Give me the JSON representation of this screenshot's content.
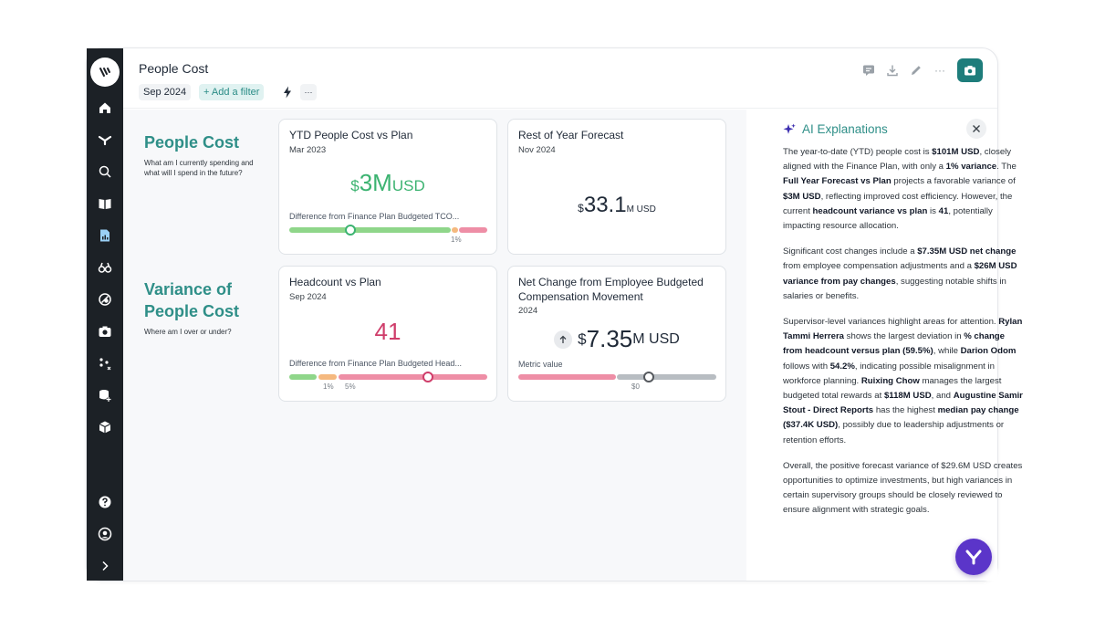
{
  "header": {
    "title": "People Cost",
    "date_chip": "Sep 2024",
    "add_filter": "+ Add a filter",
    "more": "···",
    "tools_more": "···"
  },
  "sections": [
    {
      "title": "People Cost",
      "subtitle": "What am I currently spending and what will I spend in the future?"
    },
    {
      "title": "Variance of People Cost",
      "subtitle": "Where am I over or under?"
    }
  ],
  "cards": {
    "ytd": {
      "title": "YTD People Cost vs Plan",
      "date": "Mar 2023",
      "prefix": "$",
      "value": "3M",
      "unit": "USD",
      "caption": "Difference from Finance Plan Budgeted TCO...",
      "tick": "1%",
      "value_color": "#3cb371",
      "marker_fraction": 0.31
    },
    "rest": {
      "title": "Rest of Year Forecast",
      "date": "Nov 2024",
      "prefix": "$",
      "value": "33.1",
      "unit": "M USD"
    },
    "headcount": {
      "title": "Headcount vs Plan",
      "date": "Sep 2024",
      "value": "41",
      "caption": "Difference from Finance Plan Budgeted Head...",
      "tick1": "1%",
      "tick2": "5%",
      "value_color": "#cf3d6a",
      "marker_fraction": 0.7
    },
    "netchange": {
      "title": "Net Change from Employee Budgeted Compensation Movement",
      "date": "2024",
      "prefix": "$",
      "value": "7.35",
      "unit": "M USD",
      "caption": "Metric value",
      "tick": "$0",
      "marker_fraction": 0.66
    }
  },
  "ai": {
    "title": "AI Explanations",
    "p1": [
      {
        "t": "The year-to-date (YTD) people cost is "
      },
      {
        "t": "$101M USD",
        "b": true
      },
      {
        "t": ", closely aligned with the Finance Plan, with only a "
      },
      {
        "t": "1% variance",
        "b": true
      },
      {
        "t": ". The "
      },
      {
        "t": "Full Year Forecast vs Plan",
        "b": true
      },
      {
        "t": " projects a favorable variance of "
      },
      {
        "t": "$3M USD",
        "b": true
      },
      {
        "t": ", reflecting improved cost efficiency. However, the current "
      },
      {
        "t": "headcount variance vs plan",
        "b": true
      },
      {
        "t": " is "
      },
      {
        "t": "41",
        "b": true
      },
      {
        "t": ", potentially impacting resource allocation."
      }
    ],
    "p2": [
      {
        "t": "Significant cost changes include a "
      },
      {
        "t": "$7.35M USD net change",
        "b": true
      },
      {
        "t": " from employee compensation adjustments and a "
      },
      {
        "t": "$26M USD variance from pay changes",
        "b": true
      },
      {
        "t": ", suggesting notable shifts in salaries or benefits."
      }
    ],
    "p3": [
      {
        "t": "Supervisor-level variances highlight areas for attention. "
      },
      {
        "t": "Rylan Tammi Herrera",
        "b": true
      },
      {
        "t": " shows the largest deviation in "
      },
      {
        "t": "% change from headcount versus plan (59.5%)",
        "b": true
      },
      {
        "t": ", while "
      },
      {
        "t": "Darion Odom",
        "b": true
      },
      {
        "t": " follows with "
      },
      {
        "t": "54.2%",
        "b": true
      },
      {
        "t": ", indicating possible misalignment in workforce planning. "
      },
      {
        "t": "Ruixing Chow",
        "b": true
      },
      {
        "t": " manages the largest budgeted total rewards at "
      },
      {
        "t": "$118M USD",
        "b": true
      },
      {
        "t": ", and "
      },
      {
        "t": "Augustine Samir Stout - Direct Reports",
        "b": true
      },
      {
        "t": " has the highest "
      },
      {
        "t": "median pay change ($37.4K USD)",
        "b": true
      },
      {
        "t": ", possibly due to leadership adjustments or retention efforts."
      }
    ],
    "p4": [
      {
        "t": "Overall, the positive forecast variance of $29.6M USD creates opportunities to optimize investments, but high variances in certain supervisory groups should be closely reviewed to ensure alignment with strategic goals."
      }
    ]
  },
  "colors": {
    "accent": "#2f8f88",
    "nav_bg": "#1c2126",
    "green": "#8fd68a",
    "orange": "#f5b97f",
    "pink": "#ee8ea6",
    "gray": "#b8bdc2",
    "fab": "#5b35c9"
  }
}
